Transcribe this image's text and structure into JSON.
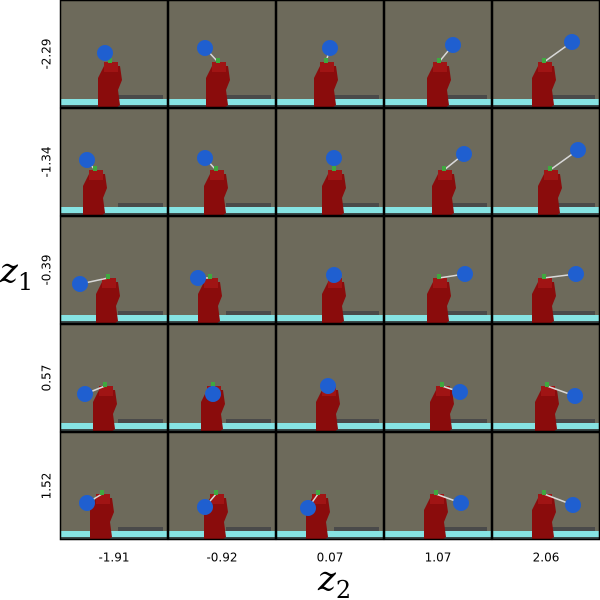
{
  "figure": {
    "row_axis": {
      "symbol": "z",
      "subscript": "1",
      "ticks": [
        "-2.29",
        "-1.34",
        "-0.39",
        "0.57",
        "1.52"
      ]
    },
    "col_axis": {
      "symbol": "z",
      "subscript": "2",
      "ticks": [
        "-1.91",
        "-0.92",
        "0.07",
        "1.07",
        "2.06"
      ]
    }
  }
}
